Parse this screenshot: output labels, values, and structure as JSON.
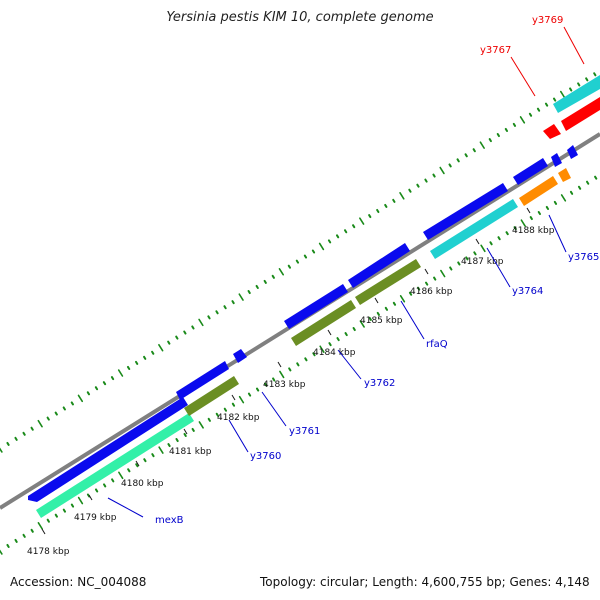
{
  "header": {
    "title": "Yersinia pestis KIM 10, complete genome"
  },
  "footer": {
    "accession": "Accession: NC_004088",
    "topology": "Topology: circular; Length: 4,600,755 bp; Genes: 4,148"
  },
  "colors": {
    "backbone": "#808080",
    "dots": "#1a8a1a",
    "cds_forward": "#0a0aee",
    "label_blue": "#0000cc",
    "label_red": "#ee0000",
    "aquamarine": "#33f0a8",
    "olive": "#6b8e23",
    "cyan": "#20d0d0",
    "red": "#ff0000",
    "orange": "#ff8c00"
  },
  "scale": {
    "ticks": [
      {
        "label": "4178 kbp"
      },
      {
        "label": "4179 kbp"
      },
      {
        "label": "4180 kbp"
      },
      {
        "label": "4181 kbp"
      },
      {
        "label": "4182 kbp"
      },
      {
        "label": "4183 kbp"
      },
      {
        "label": "4184 kbp"
      },
      {
        "label": "4185 kbp"
      },
      {
        "label": "4186 kbp"
      },
      {
        "label": "4187 kbp"
      },
      {
        "label": "4188 kbp"
      }
    ]
  },
  "gene_labels": [
    {
      "text": "mexB",
      "color": "#0000cc"
    },
    {
      "text": "y3760",
      "color": "#0000cc"
    },
    {
      "text": "y3761",
      "color": "#0000cc"
    },
    {
      "text": "y3762",
      "color": "#0000cc"
    },
    {
      "text": "rfaQ",
      "color": "#0000cc"
    },
    {
      "text": "y3764",
      "color": "#0000cc"
    },
    {
      "text": "y3765",
      "color": "#0000cc"
    },
    {
      "text": "y3767",
      "color": "#ee0000"
    },
    {
      "text": "y3769",
      "color": "#ee0000"
    }
  ]
}
